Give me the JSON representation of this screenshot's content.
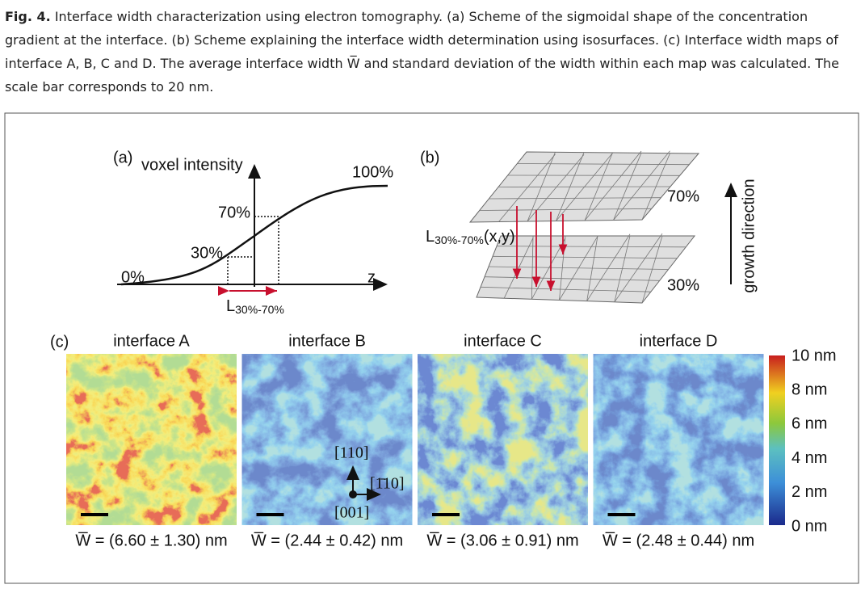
{
  "caption": {
    "label": "Fig. 4.",
    "text": "Interface width characterization using electron tomography. (a) Scheme of the sigmoidal shape of the concentration gradient at the interface. (b) Scheme explaining the interface width determination using isosurfaces. (c) Interface width maps of interface A, B, C and D. The average interface width W̅ and standard deviation of the width within each map was calculated. The scale bar corresponds to 20 nm."
  },
  "panel_a": {
    "label": "(a)",
    "y_label": "voxel intensity",
    "x_label": "z",
    "level_0": "0%",
    "level_30": "30%",
    "level_70": "70%",
    "level_100": "100%",
    "width_main": "L",
    "width_sub": "30%-70%"
  },
  "panel_b": {
    "label": "(b)",
    "upper": "70%",
    "lower": "30%",
    "distance_main": "L",
    "distance_sub": "30%-70%",
    "distance_arg": "(x,y)",
    "direction": "growth direction"
  },
  "panel_c": {
    "label": "(c)",
    "maps": [
      {
        "title": "interface A",
        "width": "W̅ = (6.60 ± 1.30) nm"
      },
      {
        "title": "interface B",
        "width": "W̅ = (2.44 ± 0.42) nm"
      },
      {
        "title": "interface C",
        "width": "W̅ = (3.06 ± 0.91) nm"
      },
      {
        "title": "interface D",
        "width": "W̅ = (2.48 ± 0.44) nm"
      }
    ],
    "crystal": {
      "up": "[110]",
      "right": "[1̄10]",
      "out": "[001]"
    },
    "colorbar": [
      "10 nm",
      "8 nm",
      "6 nm",
      "4 nm",
      "2 nm",
      "0 nm"
    ]
  }
}
